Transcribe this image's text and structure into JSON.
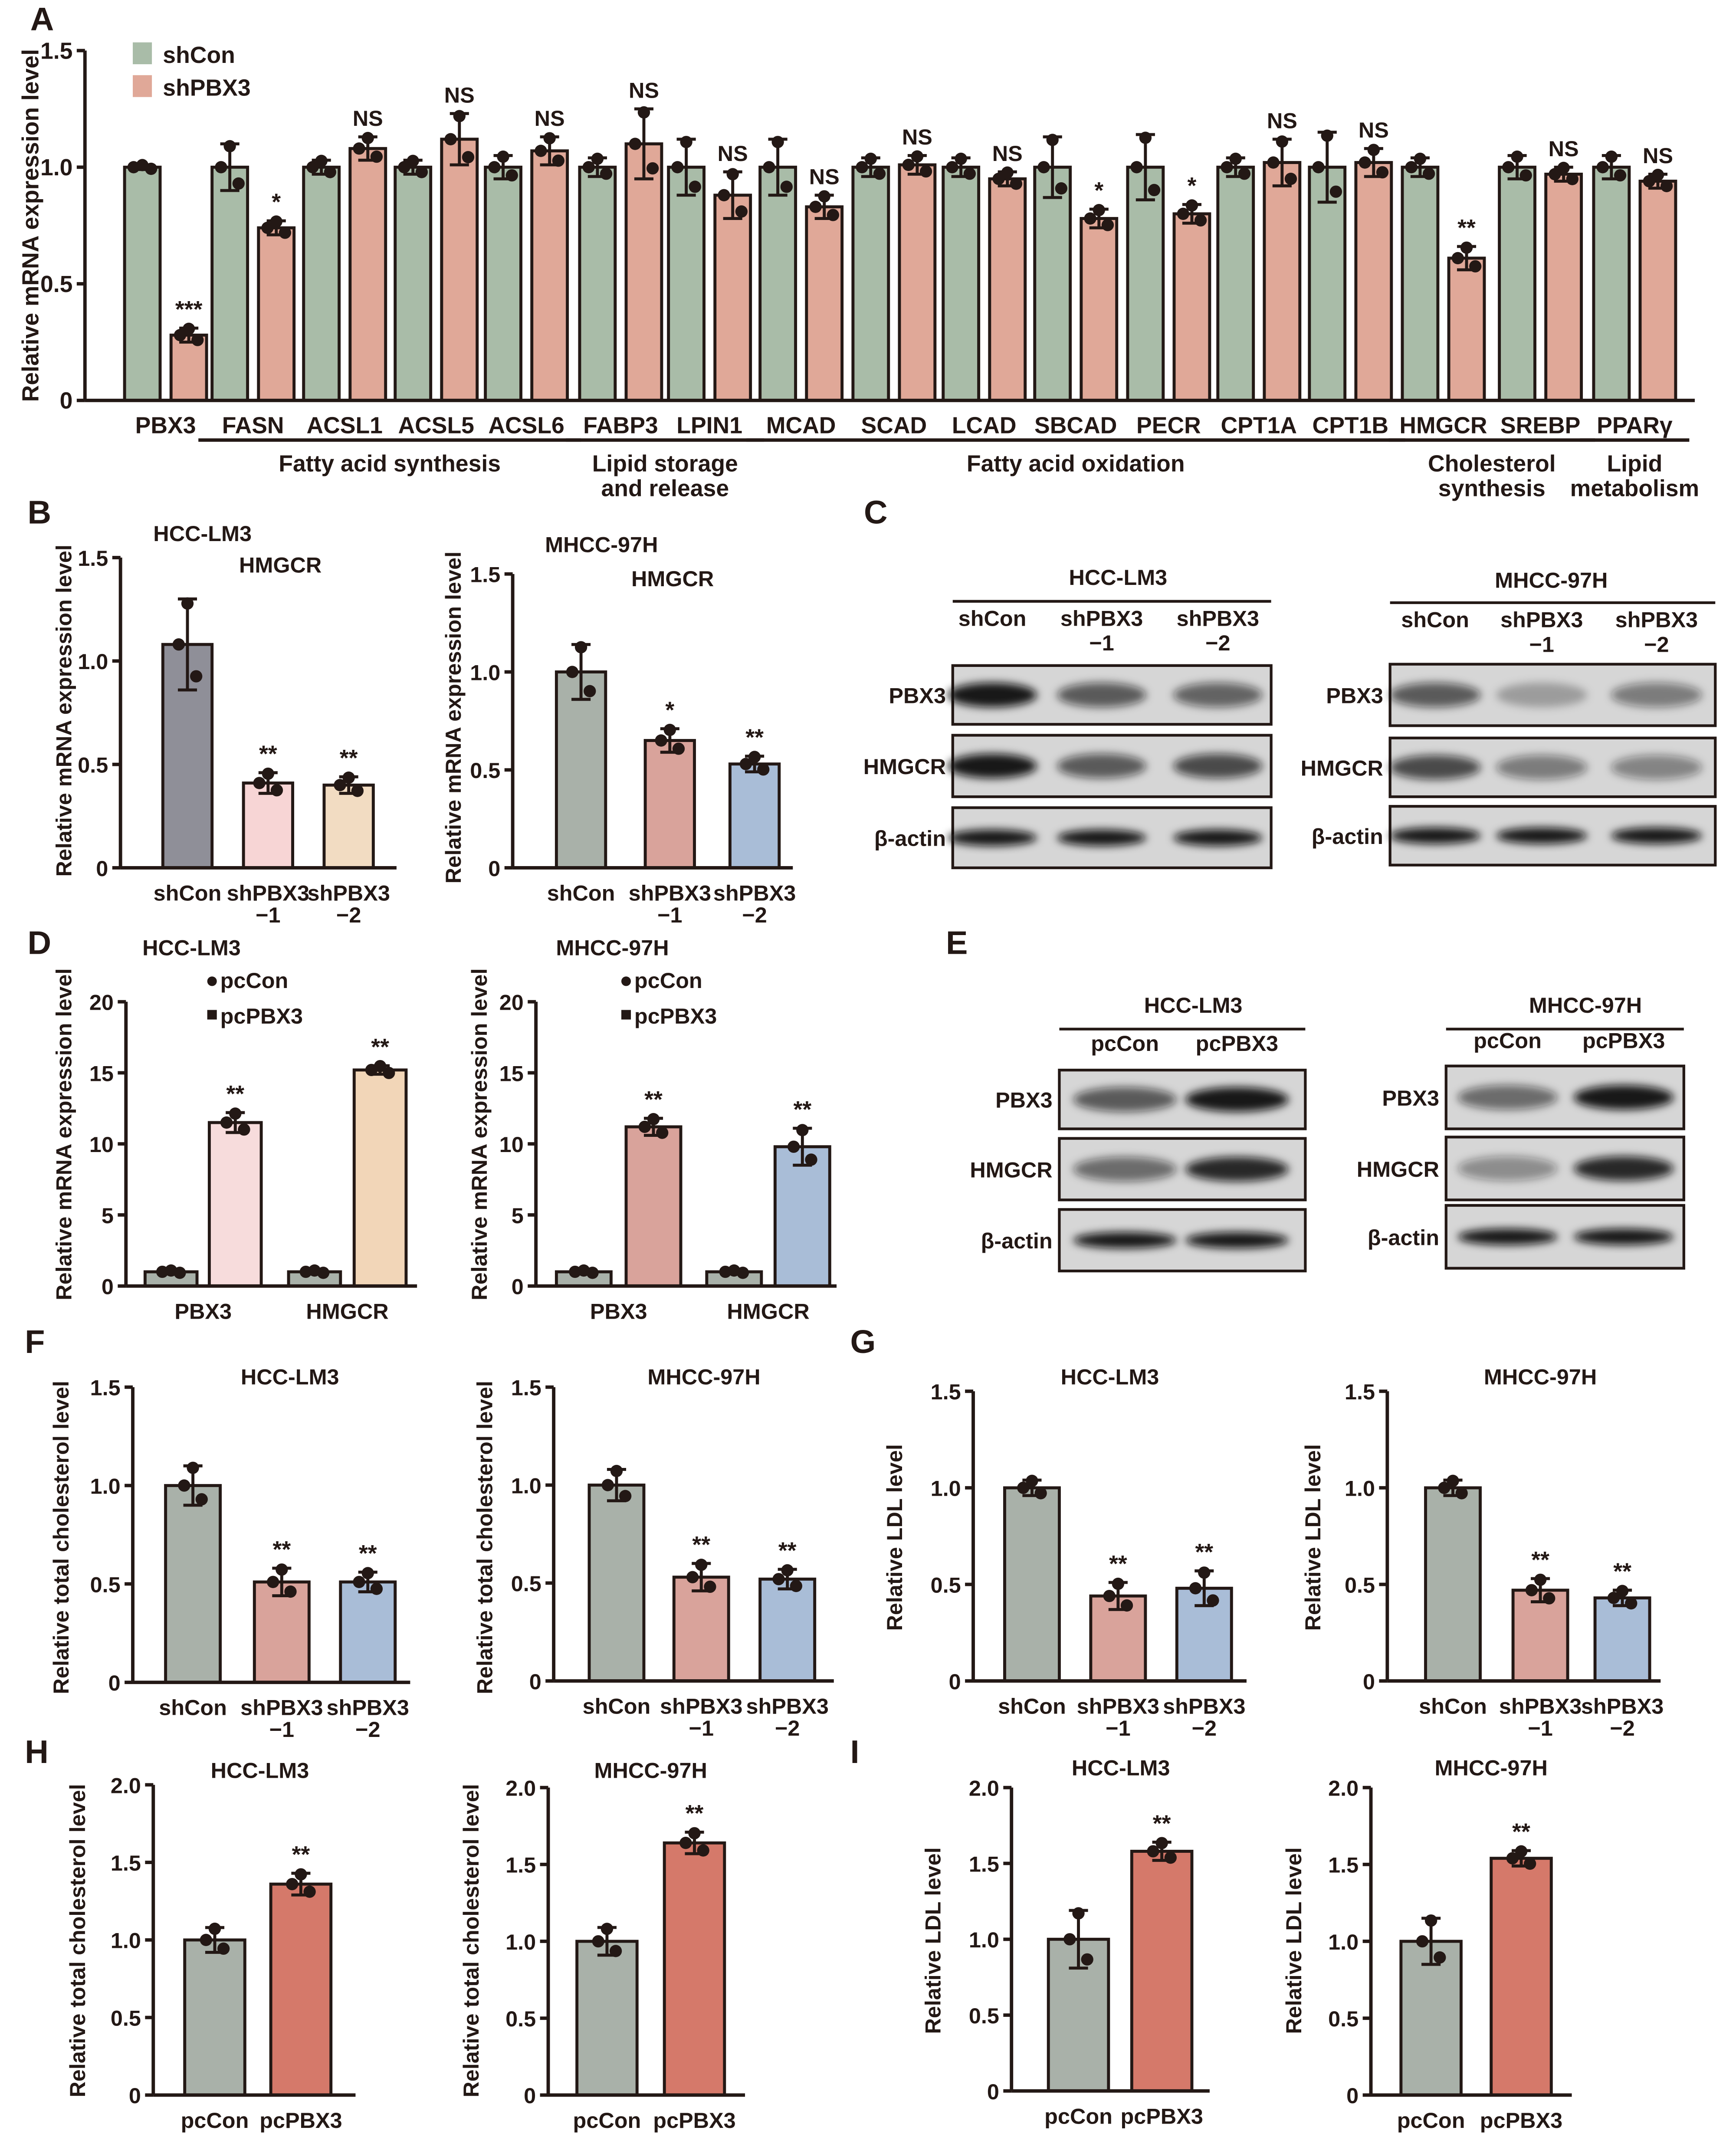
{
  "panel_labels": [
    "A",
    "B",
    "C",
    "D",
    "E",
    "F",
    "G",
    "H",
    "I"
  ],
  "chart_data": [
    {
      "panel": "A",
      "type": "bar",
      "title": "",
      "subtitle": "",
      "ylabel": "Relative mRNA expression level",
      "ylim": [
        0,
        1.5
      ],
      "yticks": [
        "0",
        "0.5",
        "1.0",
        "1.5"
      ],
      "legend": {
        "placement": "top-left",
        "entries": [
          "shCon",
          "shPBX3"
        ]
      },
      "categories": [
        [
          "PBX3"
        ],
        [
          "FASN"
        ],
        [
          "ACSL1"
        ],
        [
          "ACSL5"
        ],
        [
          "ACSL6"
        ],
        [
          "FABP3"
        ],
        [
          "LPIN1"
        ],
        [
          "MCAD"
        ],
        [
          "SCAD"
        ],
        [
          "LCAD"
        ],
        [
          "SBCAD"
        ],
        [
          "PECR"
        ],
        [
          "CPT1A"
        ],
        [
          "CPT1B"
        ],
        [
          "HMGCR"
        ],
        [
          "SREBP"
        ],
        [
          "PPARγ"
        ]
      ],
      "series": [
        {
          "name": "shCon",
          "colors": "#a9bca8",
          "values": [
            1,
            1,
            1,
            1,
            1,
            1,
            1,
            1,
            1,
            1,
            1,
            1,
            1,
            1,
            1,
            1,
            1
          ],
          "sd": [
            0.01,
            0.1,
            0.03,
            0.03,
            0.05,
            0.04,
            0.12,
            0.12,
            0.04,
            0.04,
            0.13,
            0.14,
            0.04,
            0.15,
            0.04,
            0.05,
            0.05
          ],
          "significance": [
            "",
            "",
            "",
            "",
            "",
            "",
            "",
            "",
            "",
            "",
            "",
            "",
            "",
            "",
            "",
            "",
            ""
          ]
        },
        {
          "name": "shPBX3",
          "colors": "#e0a898",
          "values": [
            0.28,
            0.74,
            1.08,
            1.12,
            1.07,
            1.1,
            0.88,
            0.83,
            1.01,
            0.95,
            0.78,
            0.8,
            1.02,
            1.02,
            0.61,
            0.97,
            0.94
          ],
          "sd": [
            0.03,
            0.03,
            0.05,
            0.11,
            0.06,
            0.15,
            0.1,
            0.05,
            0.04,
            0.03,
            0.04,
            0.04,
            0.1,
            0.06,
            0.05,
            0.03,
            0.03
          ],
          "significance": [
            "***",
            "*",
            "NS",
            "NS",
            "NS",
            "NS",
            "NS",
            "NS",
            "NS",
            "NS",
            "*",
            "*",
            "NS",
            "NS",
            "**",
            "NS",
            "NS"
          ]
        }
      ],
      "groups": [
        {
          "label": [
            "Fatty acid synthesis"
          ],
          "from": 1,
          "to": 4
        },
        {
          "label": [
            "Lipid storage",
            "and release"
          ],
          "from": 5,
          "to": 6
        },
        {
          "label": [
            "Fatty acid oxidation"
          ],
          "from": 7,
          "to": 13
        },
        {
          "label": [
            "Cholesterol",
            "synthesis"
          ],
          "from": 14,
          "to": 15
        },
        {
          "label": [
            "Lipid",
            "metabolism"
          ],
          "from": 16,
          "to": 16
        }
      ]
    },
    {
      "panel": "B",
      "type": "bar",
      "title": "HCC-LM3",
      "subtitle": "HMGCR",
      "ylabel": "Relative mRNA expression level",
      "ylim": [
        0,
        1.5
      ],
      "yticks": [
        "0",
        "0.5",
        "1.0",
        "1.5"
      ],
      "categories": [
        [
          "shCon"
        ],
        [
          "shPBX3",
          "−1"
        ],
        [
          "shPBX3",
          "−2"
        ]
      ],
      "series": [
        {
          "name": "",
          "colors": [
            "#8f8f98",
            "#f7d5d5",
            "#f2dcc2"
          ],
          "values": [
            1.08,
            0.41,
            0.4
          ],
          "sd": [
            0.22,
            0.05,
            0.04
          ],
          "significance": [
            "",
            "**",
            "**"
          ]
        }
      ]
    },
    {
      "panel": "B",
      "type": "bar",
      "title": "MHCC-97H",
      "subtitle": "HMGCR",
      "ylabel": "Relative mRNA expression level",
      "ylim": [
        0,
        1.5
      ],
      "yticks": [
        "0",
        "0.5",
        "1.0",
        "1.5"
      ],
      "categories": [
        [
          "shCon"
        ],
        [
          "shPBX3",
          "−1"
        ],
        [
          "shPBX3",
          "−2"
        ]
      ],
      "series": [
        {
          "name": "",
          "colors": [
            "#a9b1a9",
            "#d9a39b",
            "#a9bdd7"
          ],
          "values": [
            1.0,
            0.65,
            0.53
          ],
          "sd": [
            0.14,
            0.06,
            0.04
          ],
          "significance": [
            "",
            "*",
            "**"
          ]
        }
      ]
    },
    {
      "panel": "D",
      "type": "bar",
      "title": "HCC-LM3",
      "subtitle": "",
      "ylabel": "Relative mRNA expression level",
      "ylim": [
        0,
        20
      ],
      "yticks": [
        "0",
        "5",
        "10",
        "15",
        "20"
      ],
      "legend": {
        "placement": "top",
        "entries": [
          "pcCon",
          "pcPBX3"
        ]
      },
      "categories": [
        [
          "PBX3"
        ],
        [
          "HMGCR"
        ]
      ],
      "series": [
        {
          "name": "pcCon",
          "colors": [
            "#a9b1a9",
            "#a9b1a9"
          ],
          "values": [
            1,
            1
          ],
          "sd": [
            0.1,
            0.1
          ],
          "significance": [
            "",
            ""
          ]
        },
        {
          "name": "pcPBX3",
          "colors": [
            "#f7dcdc",
            "#f2d6b8"
          ],
          "values": [
            11.5,
            15.2
          ],
          "sd": [
            0.7,
            0.3
          ],
          "significance": [
            "**",
            "**"
          ]
        }
      ]
    },
    {
      "panel": "D",
      "type": "bar",
      "title": "MHCC-97H",
      "subtitle": "",
      "ylabel": "Relative mRNA expression level",
      "ylim": [
        0,
        20
      ],
      "yticks": [
        "0",
        "5",
        "10",
        "15",
        "20"
      ],
      "legend": {
        "placement": "top",
        "entries": [
          "pcCon",
          "pcPBX3"
        ]
      },
      "categories": [
        [
          "PBX3"
        ],
        [
          "HMGCR"
        ]
      ],
      "series": [
        {
          "name": "pcCon",
          "colors": [
            "#a9b1a9",
            "#a9b1a9"
          ],
          "values": [
            1,
            1
          ],
          "sd": [
            0.1,
            0.1
          ],
          "significance": [
            "",
            ""
          ]
        },
        {
          "name": "pcPBX3",
          "colors": [
            "#d9a39b",
            "#a9bdd7"
          ],
          "values": [
            11.2,
            9.8
          ],
          "sd": [
            0.6,
            1.3
          ],
          "significance": [
            "**",
            "**"
          ]
        }
      ]
    },
    {
      "panel": "F",
      "type": "bar",
      "title": "HCC-LM3",
      "subtitle": "",
      "ylabel": "Relative total cholesterol level",
      "ylim": [
        0,
        1.5
      ],
      "yticks": [
        "0",
        "0.5",
        "1.0",
        "1.5"
      ],
      "categories": [
        [
          "shCon"
        ],
        [
          "shPBX3",
          "−1"
        ],
        [
          "shPBX3",
          "−2"
        ]
      ],
      "series": [
        {
          "name": "",
          "colors": [
            "#a9b1a9",
            "#d9a39b",
            "#a9bdd7"
          ],
          "values": [
            1.0,
            0.51,
            0.51
          ],
          "sd": [
            0.1,
            0.07,
            0.05
          ],
          "significance": [
            "",
            "**",
            "**"
          ]
        }
      ]
    },
    {
      "panel": "F",
      "type": "bar",
      "title": "MHCC-97H",
      "subtitle": "",
      "ylabel": "Relative total cholesterol level",
      "ylim": [
        0,
        1.5
      ],
      "yticks": [
        "0",
        "0.5",
        "1.0",
        "1.5"
      ],
      "categories": [
        [
          "shCon"
        ],
        [
          "shPBX3",
          "−1"
        ],
        [
          "shPBX3",
          "−2"
        ]
      ],
      "series": [
        {
          "name": "",
          "colors": [
            "#a9b1a9",
            "#d9a39b",
            "#a9bdd7"
          ],
          "values": [
            1.0,
            0.53,
            0.52
          ],
          "sd": [
            0.08,
            0.07,
            0.05
          ],
          "significance": [
            "",
            "**",
            "**"
          ]
        }
      ]
    },
    {
      "panel": "G",
      "type": "bar",
      "title": "HCC-LM3",
      "subtitle": "",
      "ylabel": "Relative LDL level",
      "ylim": [
        0,
        1.5
      ],
      "yticks": [
        "0",
        "0.5",
        "1.0",
        "1.5"
      ],
      "categories": [
        [
          "shCon"
        ],
        [
          "shPBX3",
          "−1"
        ],
        [
          "shPBX3",
          "−2"
        ]
      ],
      "series": [
        {
          "name": "",
          "colors": [
            "#a9b1a9",
            "#d9a39b",
            "#a9bdd7"
          ],
          "values": [
            1.0,
            0.44,
            0.48
          ],
          "sd": [
            0.04,
            0.07,
            0.09
          ],
          "significance": [
            "",
            "**",
            "**"
          ]
        }
      ]
    },
    {
      "panel": "G",
      "type": "bar",
      "title": "MHCC-97H",
      "subtitle": "",
      "ylabel": "Relative LDL level",
      "ylim": [
        0,
        1.5
      ],
      "yticks": [
        "0",
        "0.5",
        "1.0",
        "1.5"
      ],
      "categories": [
        [
          "shCon"
        ],
        [
          "shPBX3",
          "−1"
        ],
        [
          "shPBX3",
          "−2"
        ]
      ],
      "series": [
        {
          "name": "",
          "colors": [
            "#a9b1a9",
            "#d9a39b",
            "#a9bdd7"
          ],
          "values": [
            1.0,
            0.47,
            0.43
          ],
          "sd": [
            0.04,
            0.06,
            0.04
          ],
          "significance": [
            "",
            "**",
            "**"
          ]
        }
      ]
    },
    {
      "panel": "H",
      "type": "bar",
      "title": "HCC-LM3",
      "subtitle": "",
      "ylabel": "Relative total cholesterol level",
      "ylim": [
        0,
        2.0
      ],
      "yticks": [
        "0",
        "0.5",
        "1.0",
        "1.5",
        "2.0"
      ],
      "categories": [
        [
          "pcCon"
        ],
        [
          "pcPBX3"
        ]
      ],
      "series": [
        {
          "name": "",
          "colors": [
            "#a9b1a9",
            "#d5796a"
          ],
          "values": [
            1.0,
            1.36
          ],
          "sd": [
            0.08,
            0.07
          ],
          "significance": [
            "",
            "**"
          ]
        }
      ]
    },
    {
      "panel": "H",
      "type": "bar",
      "title": "MHCC-97H",
      "subtitle": "",
      "ylabel": "Relative total cholesterol level",
      "ylim": [
        0,
        2.0
      ],
      "yticks": [
        "0",
        "0.5",
        "1.0",
        "1.5",
        "2.0"
      ],
      "categories": [
        [
          "pcCon"
        ],
        [
          "pcPBX3"
        ]
      ],
      "series": [
        {
          "name": "",
          "colors": [
            "#a9b1a9",
            "#d5796a"
          ],
          "values": [
            1.0,
            1.64
          ],
          "sd": [
            0.09,
            0.07
          ],
          "significance": [
            "",
            "**"
          ]
        }
      ]
    },
    {
      "panel": "I",
      "type": "bar",
      "title": "HCC-LM3",
      "subtitle": "",
      "ylabel": "Relative LDL level",
      "ylim": [
        0,
        2.0
      ],
      "yticks": [
        "0",
        "0.5",
        "1.0",
        "1.5",
        "2.0"
      ],
      "categories": [
        [
          "pcCon"
        ],
        [
          "pcPBX3"
        ]
      ],
      "series": [
        {
          "name": "",
          "colors": [
            "#a9b1a9",
            "#d5796a"
          ],
          "values": [
            1.0,
            1.58
          ],
          "sd": [
            0.19,
            0.06
          ],
          "significance": [
            "",
            "**"
          ]
        }
      ]
    },
    {
      "panel": "I",
      "type": "bar",
      "title": "MHCC-97H",
      "subtitle": "",
      "ylabel": "Relative LDL level",
      "ylim": [
        0,
        2.0
      ],
      "yticks": [
        "0",
        "0.5",
        "1.0",
        "1.5",
        "2.0"
      ],
      "categories": [
        [
          "pcCon"
        ],
        [
          "pcPBX3"
        ]
      ],
      "series": [
        {
          "name": "",
          "colors": [
            "#a9b1a9",
            "#d5796a"
          ],
          "values": [
            1.0,
            1.54
          ],
          "sd": [
            0.15,
            0.05
          ],
          "significance": [
            "",
            "**"
          ]
        }
      ]
    }
  ],
  "blots": [
    {
      "panel": "C",
      "cell_line": "HCC-LM3",
      "lanes": [
        [
          "shCon"
        ],
        [
          "shPBX3",
          "−1"
        ],
        [
          "shPBX3",
          "−2"
        ]
      ],
      "rows": [
        {
          "label": "PBX3",
          "intensity": [
            1,
            0.6,
            0.55
          ]
        },
        {
          "label": "HMGCR",
          "intensity": [
            1,
            0.6,
            0.7
          ]
        },
        {
          "label": "β-actin",
          "intensity": [
            1,
            1,
            1
          ]
        }
      ]
    },
    {
      "panel": "C",
      "cell_line": "MHCC-97H",
      "lanes": [
        [
          "shCon"
        ],
        [
          "shPBX3",
          "−1"
        ],
        [
          "shPBX3",
          "−2"
        ]
      ],
      "rows": [
        {
          "label": "PBX3",
          "intensity": [
            0.6,
            0.15,
            0.4
          ]
        },
        {
          "label": "HMGCR",
          "intensity": [
            0.7,
            0.4,
            0.35
          ]
        },
        {
          "label": "β-actin",
          "intensity": [
            1,
            1,
            1
          ]
        }
      ]
    },
    {
      "panel": "E",
      "cell_line": "HCC-LM3",
      "lanes": [
        [
          "pcCon"
        ],
        [
          "pcPBX3"
        ]
      ],
      "rows": [
        {
          "label": "PBX3",
          "intensity": [
            0.6,
            1
          ]
        },
        {
          "label": "HMGCR",
          "intensity": [
            0.5,
            0.9
          ]
        },
        {
          "label": "β-actin",
          "intensity": [
            1,
            1
          ]
        }
      ]
    },
    {
      "panel": "E",
      "cell_line": "MHCC-97H",
      "lanes": [
        [
          "pcCon"
        ],
        [
          "pcPBX3"
        ]
      ],
      "rows": [
        {
          "label": "PBX3",
          "intensity": [
            0.5,
            1
          ]
        },
        {
          "label": "HMGCR",
          "intensity": [
            0.3,
            0.9
          ]
        },
        {
          "label": "β-actin",
          "intensity": [
            1,
            1
          ]
        }
      ]
    }
  ]
}
